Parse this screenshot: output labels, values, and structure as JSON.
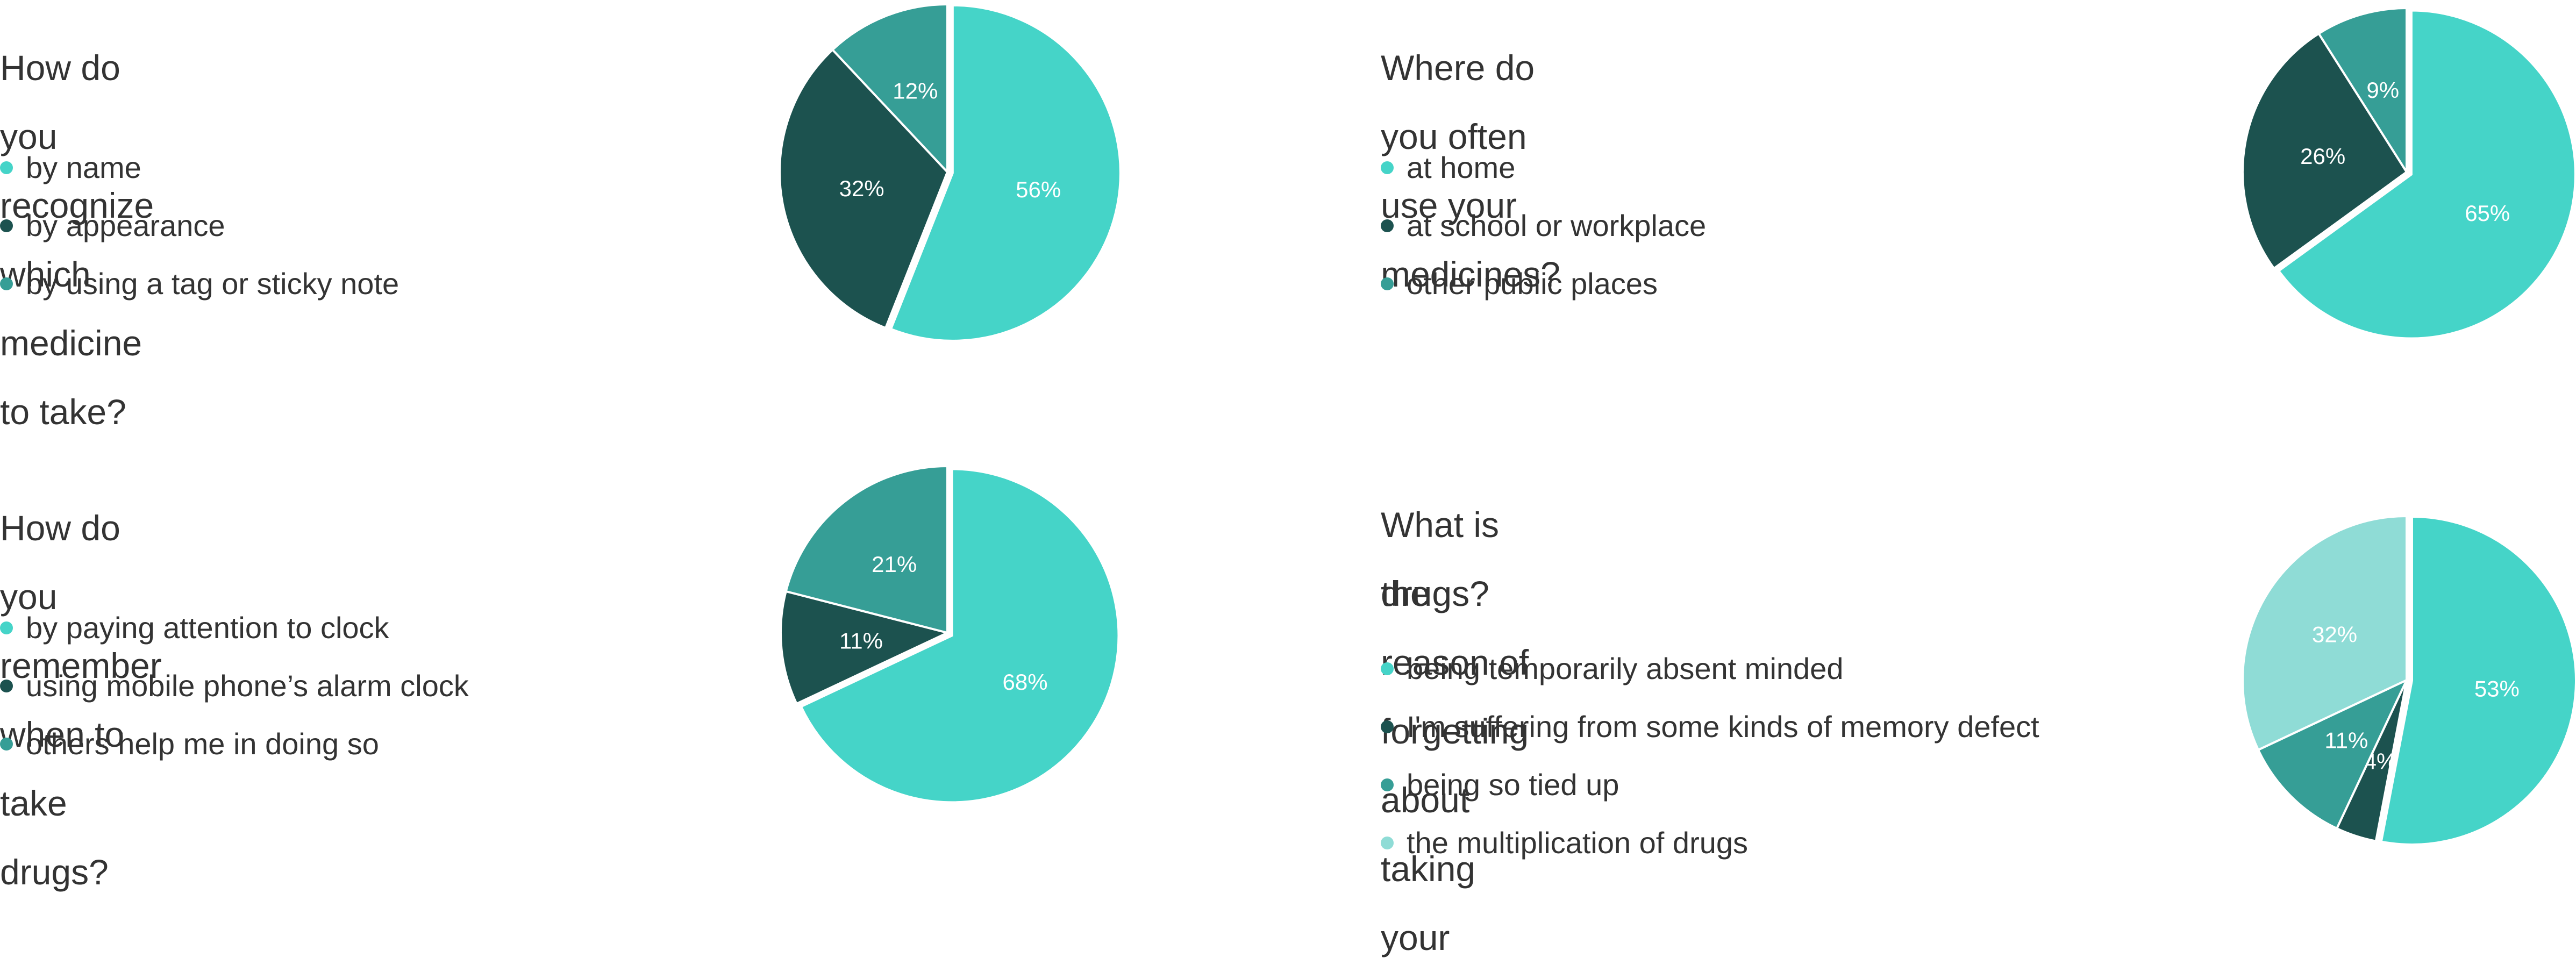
{
  "chart_data": [
    {
      "type": "pie",
      "title": "How do you recognize which medicine to take?",
      "categories": [
        "by name",
        "by appearance",
        "by using a tag or sticky note"
      ],
      "values": [
        56,
        32,
        12
      ],
      "labels": [
        "56%",
        "32%",
        "12%"
      ],
      "colors": [
        "#45d4c8",
        "#1c524f",
        "#369e96"
      ],
      "exploded": [
        true,
        false,
        false
      ]
    },
    {
      "type": "pie",
      "title": "Where do you often use your medicines?",
      "categories": [
        "at home",
        "at school or workplace",
        "other public places"
      ],
      "values": [
        65,
        26,
        9
      ],
      "labels": [
        "65%",
        "26%",
        "9%"
      ],
      "colors": [
        "#45d4c8",
        "#1c524f",
        "#369e96"
      ],
      "exploded": [
        true,
        false,
        false
      ]
    },
    {
      "type": "pie",
      "title": "How do you remember when to take drugs?",
      "categories": [
        "by paying attention to clock",
        "using mobile phone’s alarm clock",
        "others help me in doing so"
      ],
      "values": [
        68,
        11,
        21
      ],
      "labels": [
        "68%",
        "11%",
        "21%"
      ],
      "colors": [
        "#45d4c8",
        "#1c524f",
        "#369e96"
      ],
      "exploded": [
        true,
        false,
        false
      ]
    },
    {
      "type": "pie",
      "title": "What is the reason of forgetting about taking your drugs?",
      "title_lines": [
        "What is the reason of forgetting about taking your",
        "drugs?"
      ],
      "categories": [
        "being temporarily absent minded",
        "I'm suffering from some kinds of memory defect",
        "being so tied up",
        "the multiplication of drugs"
      ],
      "values": [
        53,
        4,
        11,
        32
      ],
      "labels": [
        "53%",
        "4%",
        "11%",
        "32%"
      ],
      "colors": [
        "#45d4c8",
        "#1c524f",
        "#369e96",
        "#8fdcd6"
      ],
      "exploded": [
        true,
        false,
        false,
        false
      ]
    }
  ]
}
